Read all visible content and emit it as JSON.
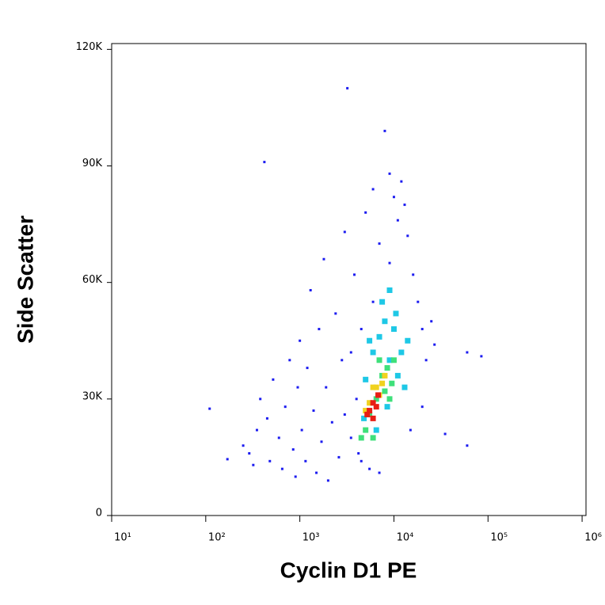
{
  "chart_data": {
    "type": "scatter",
    "xlabel": "Cyclin D1 PE",
    "ylabel": "Side Scatter",
    "xscale": "log",
    "xlim": [
      10,
      1100000
    ],
    "ylim": [
      0,
      121500
    ],
    "xticks": [
      {
        "value": 10,
        "label": "10¹"
      },
      {
        "value": 100,
        "label": "10²"
      },
      {
        "value": 1000,
        "label": "10³"
      },
      {
        "value": 10000,
        "label": "10⁴"
      },
      {
        "value": 100000,
        "label": "10⁵"
      },
      {
        "value": 1000000,
        "label": "10⁶"
      }
    ],
    "yticks": [
      0,
      {
        "value": 30000,
        "label": "30K"
      },
      {
        "value": 60000,
        "label": "60K"
      },
      {
        "value": 90000,
        "label": "90K"
      },
      {
        "value": 120000,
        "label": "120K"
      }
    ],
    "series": [
      {
        "color": "#1c1cf0",
        "x": [
          110,
          170,
          250,
          290,
          320,
          350,
          380,
          420,
          450,
          480,
          520,
          600,
          650,
          700,
          780,
          850,
          900,
          950,
          1000,
          1050,
          1150,
          1200,
          1300,
          1400,
          1500,
          1600,
          1700,
          1800,
          1900,
          2000,
          2200,
          2400,
          2600,
          2800,
          3000,
          3200,
          3500,
          3800,
          4200,
          4500,
          5000,
          5500,
          6000,
          7000,
          8000,
          9000,
          10000,
          11000,
          12000,
          14000,
          16000,
          18000,
          20000,
          22000,
          25000,
          27000,
          20000,
          15000,
          35000,
          60000,
          60000,
          85000,
          4000,
          3500,
          3000,
          4500,
          7000,
          13000,
          9000,
          6000
        ],
        "y": [
          27500,
          14500,
          18000,
          16000,
          13000,
          22000,
          30000,
          91000,
          25000,
          14000,
          35000,
          20000,
          12000,
          28000,
          40000,
          17000,
          10000,
          33000,
          45000,
          22000,
          14000,
          38000,
          58000,
          27000,
          11000,
          48000,
          19000,
          66000,
          33000,
          9000,
          24000,
          52000,
          15000,
          40000,
          73000,
          110000,
          20000,
          62000,
          16000,
          48000,
          78000,
          12000,
          84000,
          70000,
          99000,
          88000,
          82000,
          76000,
          86000,
          72000,
          62000,
          55000,
          48000,
          40000,
          50000,
          44000,
          28000,
          22000,
          21000,
          18000,
          42000,
          41000,
          30000,
          42000,
          26000,
          14000,
          11000,
          80000,
          65000,
          55000
        ]
      },
      {
        "color": "#1ec8e6",
        "x": [
          5000,
          6000,
          7000,
          8000,
          9000,
          10000,
          11000,
          12000,
          9000,
          7500,
          13000,
          6500,
          8500,
          14000,
          10500,
          5500,
          4800
        ],
        "y": [
          35000,
          42000,
          46000,
          50000,
          40000,
          48000,
          36000,
          42000,
          58000,
          55000,
          33000,
          22000,
          28000,
          45000,
          52000,
          45000,
          25000
        ]
      },
      {
        "color": "#3ee07a",
        "x": [
          5000,
          5500,
          6500,
          7500,
          8500,
          9500,
          10000,
          7000,
          8000,
          6000,
          9000,
          4500
        ],
        "y": [
          22000,
          26000,
          30000,
          36000,
          38000,
          34000,
          40000,
          40000,
          32000,
          20000,
          30000,
          20000
        ]
      },
      {
        "color": "#f0d21e",
        "x": [
          5500,
          6500,
          7000,
          7500,
          6000,
          8000,
          5000
        ],
        "y": [
          29000,
          33000,
          31000,
          34000,
          33000,
          36000,
          27000
        ]
      },
      {
        "color": "#e81e14",
        "x": [
          5500,
          6000,
          6500,
          6000,
          5200,
          6800
        ],
        "y": [
          27000,
          29000,
          28000,
          25000,
          26000,
          31000
        ]
      }
    ]
  }
}
